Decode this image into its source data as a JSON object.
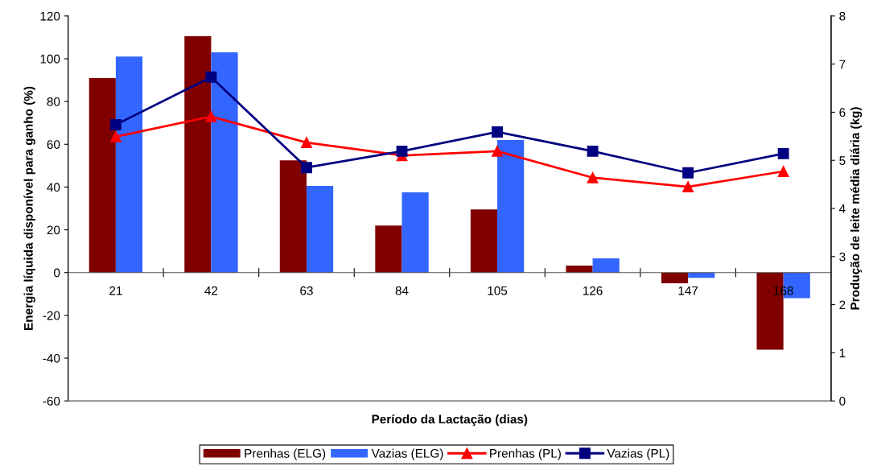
{
  "chart_data": {
    "type": "bar",
    "xlabel": "Período da Lactação (dias)",
    "ylabel": "Energia líquida disponível para ganho (%)",
    "y2label": "Produção de leite média diária (kg)",
    "categories": [
      "21",
      "42",
      "63",
      "84",
      "105",
      "126",
      "147",
      "168"
    ],
    "series": [
      {
        "name": "Prenhas (ELG)",
        "color": "#800000",
        "values": [
          91,
          110.5,
          52.5,
          22,
          29.5,
          3.3,
          -5,
          -36
        ]
      },
      {
        "name": "Vazias (ELG)",
        "color": "#3366ff",
        "values": [
          101,
          103,
          40.5,
          37.5,
          62,
          6.7,
          -2.5,
          -12
        ]
      },
      {
        "name": "Prenhas (PL)",
        "type": "line",
        "axis": "y2",
        "marker": "triangle",
        "color": "#ff0000",
        "values": [
          5.49,
          5.91,
          5.37,
          5.1,
          5.19,
          4.64,
          4.45,
          4.77
        ]
      },
      {
        "name": "Vazias (PL)",
        "type": "line",
        "axis": "y2",
        "marker": "square",
        "color": "#000080",
        "values": [
          5.74,
          6.73,
          4.85,
          5.19,
          5.59,
          5.19,
          4.74,
          5.14
        ]
      }
    ],
    "ylim": [
      -60,
      120
    ],
    "yticks": [
      -60,
      -40,
      -20,
      0,
      20,
      40,
      60,
      80,
      100,
      120
    ],
    "y2lim": [
      0,
      8
    ],
    "y2ticks": [
      0,
      1,
      2,
      3,
      4,
      5,
      6,
      7,
      8
    ],
    "grid": false,
    "legend": "bottom"
  }
}
